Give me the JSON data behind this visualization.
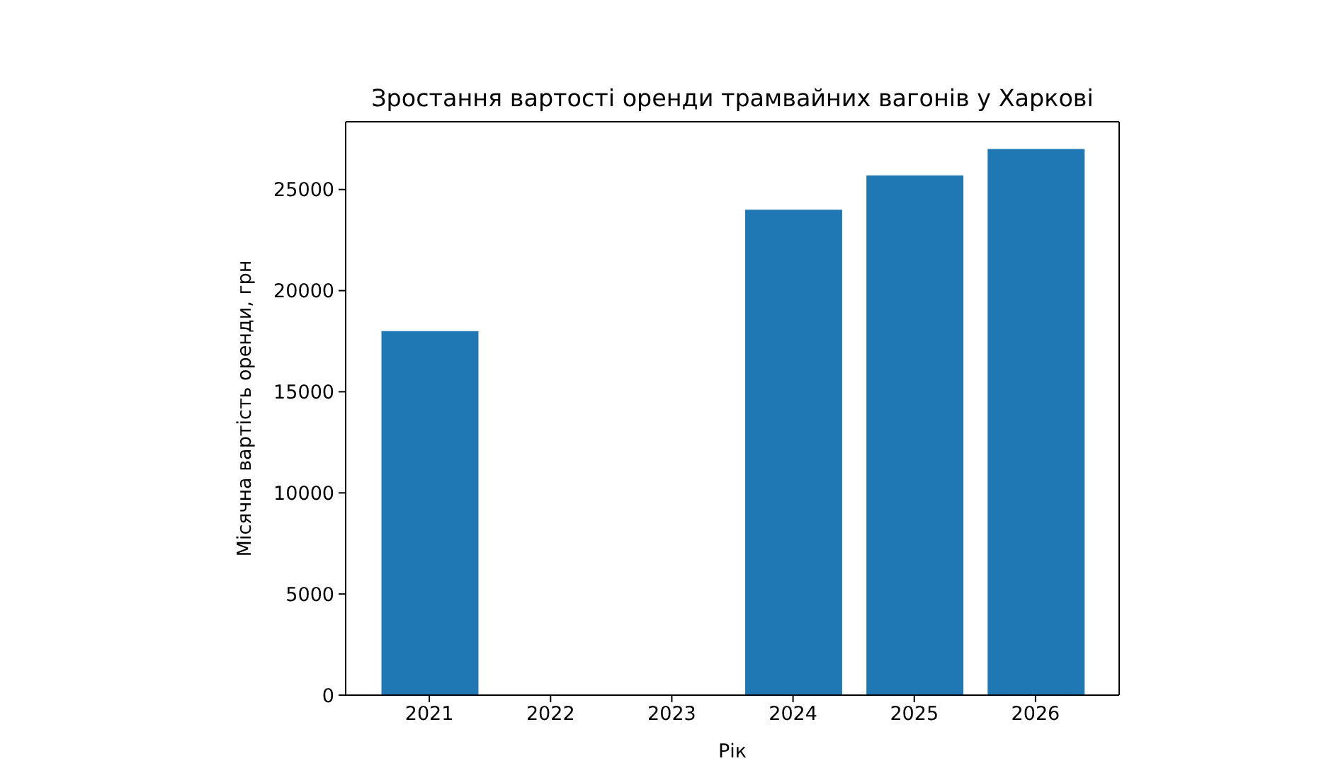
{
  "chart_data": {
    "type": "bar",
    "title": "Зростання вартості оренди трамвайних вагонів у Харкові",
    "xlabel": "Рік",
    "ylabel": "Місячна вартість оренди, грн",
    "x": [
      2021,
      2024,
      2025,
      2026
    ],
    "values": [
      18000,
      24000,
      25700,
      27000
    ],
    "color": "#1f77b4",
    "xlim": [
      2020.31,
      2026.69
    ],
    "xticks": [
      2021,
      2022,
      2023,
      2024,
      2025,
      2026
    ],
    "ylim": [
      0,
      28350
    ],
    "yticks": [
      0,
      5000,
      10000,
      15000,
      20000,
      25000
    ]
  }
}
